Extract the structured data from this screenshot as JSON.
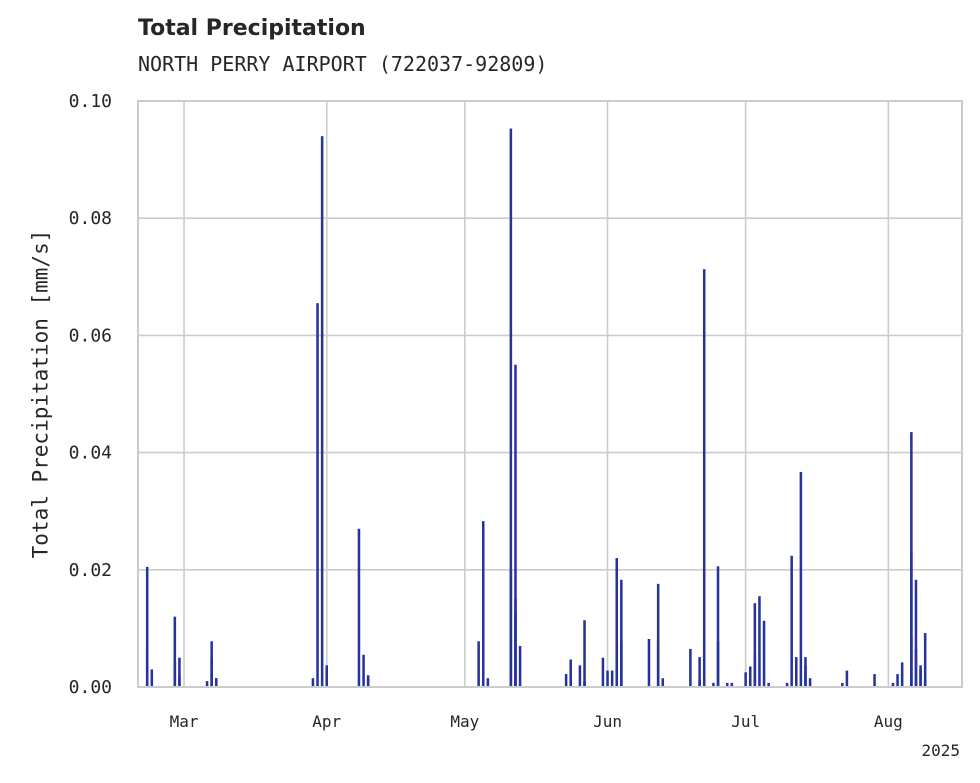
{
  "chart_data": {
    "type": "bar",
    "title": "Total Precipitation",
    "subtitle": "NORTH PERRY AIRPORT (722037-92809)",
    "ylabel": "Total Precipitation [mm/s]",
    "xlabel": "",
    "ylim": [
      0,
      0.1
    ],
    "xlim": [
      "2025-02-19",
      "2025-08-17"
    ],
    "yticks": [
      "0.00",
      "0.02",
      "0.04",
      "0.06",
      "0.08",
      "0.10"
    ],
    "xticks": [
      {
        "date": "2025-03-01",
        "label": "Mar"
      },
      {
        "date": "2025-04-01",
        "label": "Apr"
      },
      {
        "date": "2025-05-01",
        "label": "May"
      },
      {
        "date": "2025-06-01",
        "label": "Jun"
      },
      {
        "date": "2025-07-01",
        "label": "Jul"
      },
      {
        "date": "2025-08-01",
        "label": "Aug"
      }
    ],
    "year_label": "2025",
    "grid": true,
    "color": "#25339a",
    "points": [
      [
        "2025-02-21",
        0.0065
      ],
      [
        "2025-02-21",
        0.0205
      ],
      [
        "2025-02-22",
        0.003
      ],
      [
        "2025-02-27",
        0.0045
      ],
      [
        "2025-02-27",
        0.012
      ],
      [
        "2025-02-28",
        0.005
      ],
      [
        "2025-02-28",
        0.002
      ],
      [
        "2025-03-06",
        0.001
      ],
      [
        "2025-03-07",
        0.0078
      ],
      [
        "2025-03-07",
        0.005
      ],
      [
        "2025-03-08",
        0.0015
      ],
      [
        "2025-03-08",
        0.0015
      ],
      [
        "2025-03-29",
        0.0015
      ],
      [
        "2025-03-30",
        0.0655
      ],
      [
        "2025-03-31",
        0.094
      ],
      [
        "2025-04-01",
        0.0037
      ],
      [
        "2025-04-08",
        0.027
      ],
      [
        "2025-04-09",
        0.0055
      ],
      [
        "2025-04-10",
        0.002
      ],
      [
        "2025-04-10",
        0.0015
      ],
      [
        "2025-05-04",
        0.0078
      ],
      [
        "2025-05-05",
        0.0283
      ],
      [
        "2025-05-06",
        0.0015
      ],
      [
        "2025-05-11",
        0.02
      ],
      [
        "2025-05-11",
        0.0953
      ],
      [
        "2025-05-12",
        0.055
      ],
      [
        "2025-05-12",
        0.015
      ],
      [
        "2025-05-12",
        0.0125
      ],
      [
        "2025-05-13",
        0.007
      ],
      [
        "2025-05-23",
        0.0022
      ],
      [
        "2025-05-24",
        0.0047
      ],
      [
        "2025-05-26",
        0.0037
      ],
      [
        "2025-05-27",
        0.0114
      ],
      [
        "2025-05-27",
        0.001
      ],
      [
        "2025-05-31",
        0.005
      ],
      [
        "2025-06-01",
        0.0028
      ],
      [
        "2025-06-02",
        0.0028
      ],
      [
        "2025-06-03",
        0.0082
      ],
      [
        "2025-06-03",
        0.022
      ],
      [
        "2025-06-04",
        0.0183
      ],
      [
        "2025-06-04",
        0.0078
      ],
      [
        "2025-06-10",
        0.0082
      ],
      [
        "2025-06-12",
        0.0176
      ],
      [
        "2025-06-12",
        0.0078
      ],
      [
        "2025-06-13",
        0.0015
      ],
      [
        "2025-06-19",
        0.0065
      ],
      [
        "2025-06-21",
        0.0051
      ],
      [
        "2025-06-21",
        0.0012
      ],
      [
        "2025-06-22",
        0.0713
      ],
      [
        "2025-06-24",
        0.0007
      ],
      [
        "2025-06-25",
        0.0078
      ],
      [
        "2025-06-25",
        0.0206
      ],
      [
        "2025-06-27",
        0.0007
      ],
      [
        "2025-06-28",
        0.0007
      ],
      [
        "2025-07-01",
        0.0025
      ],
      [
        "2025-07-02",
        0.0035
      ],
      [
        "2025-07-03",
        0.0055
      ],
      [
        "2025-07-03",
        0.0143
      ],
      [
        "2025-07-04",
        0.0155
      ],
      [
        "2025-07-05",
        0.0113
      ],
      [
        "2025-07-06",
        0.0007
      ],
      [
        "2025-07-10",
        0.0007
      ],
      [
        "2025-07-11",
        0.0224
      ],
      [
        "2025-07-12",
        0.0051
      ],
      [
        "2025-07-13",
        0.0367
      ],
      [
        "2025-07-14",
        0.0051
      ],
      [
        "2025-07-14",
        0.0037
      ],
      [
        "2025-07-15",
        0.0015
      ],
      [
        "2025-07-22",
        0.0007
      ],
      [
        "2025-07-23",
        0.0028
      ],
      [
        "2025-07-29",
        0.0022
      ],
      [
        "2025-08-02",
        0.0007
      ],
      [
        "2025-08-03",
        0.0022
      ],
      [
        "2025-08-04",
        0.0042
      ],
      [
        "2025-08-06",
        0.0435
      ],
      [
        "2025-08-06",
        0.0232
      ],
      [
        "2025-08-06",
        0.0085
      ],
      [
        "2025-08-07",
        0.0065
      ],
      [
        "2025-08-07",
        0.0183
      ],
      [
        "2025-08-08",
        0.003
      ],
      [
        "2025-08-08",
        0.0037
      ],
      [
        "2025-08-09",
        0.0092
      ],
      [
        "2025-08-09",
        0.001
      ]
    ]
  }
}
